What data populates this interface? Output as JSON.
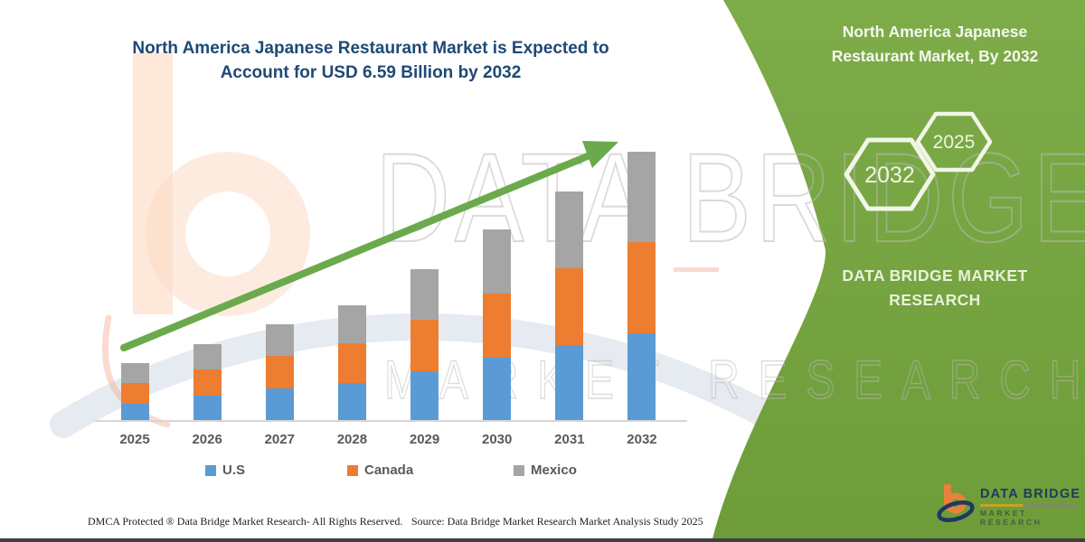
{
  "header": {
    "title_lines": [
      "North America Japanese Restaurant Market is Expected to",
      "Account for USD 6.59 Billion by 2032"
    ]
  },
  "chart_data": {
    "type": "bar",
    "stacked": true,
    "title": "North America Japanese Restaurant Market is Expected to Account for USD 6.59 Billion by 2032",
    "unit": "USD Billion",
    "categories": [
      "2025",
      "2026",
      "2027",
      "2028",
      "2029",
      "2030",
      "2031",
      "2032"
    ],
    "series": [
      {
        "name": "U.S",
        "color": "#5B9BD5",
        "values": [
          0.4,
          0.6,
          0.78,
          0.91,
          1.2,
          1.53,
          1.84,
          2.13
        ]
      },
      {
        "name": "Canada",
        "color": "#ED7D31",
        "values": [
          0.51,
          0.64,
          0.8,
          0.98,
          1.27,
          1.58,
          1.89,
          2.24
        ]
      },
      {
        "name": "Mexico",
        "color": "#A5A5A5",
        "values": [
          0.49,
          0.62,
          0.78,
          0.93,
          1.24,
          1.58,
          1.89,
          2.22
        ]
      }
    ],
    "totals": [
      1.4,
      1.86,
      2.36,
      2.82,
      3.71,
      4.69,
      5.62,
      6.59
    ],
    "ylim": [
      0,
      7
    ],
    "gridlines": false,
    "y_axis_visible": false,
    "legend_position": "bottom",
    "annotations": [
      "upward trend arrow"
    ]
  },
  "side_panel": {
    "title_lines": [
      "North America Japanese",
      "Restaurant Market, By 2032"
    ],
    "hexagons": [
      {
        "label": "2032"
      },
      {
        "label": "2025"
      }
    ],
    "brand_lines": [
      "DATA BRIDGE MARKET",
      "RESEARCH"
    ],
    "logo": {
      "name": "DATA BRIDGE",
      "subtitle": "MARKET RESEARCH"
    }
  },
  "watermark": {
    "line1": "DATA BRIDGE",
    "line2": "MARKET RESEARCH"
  },
  "footer": {
    "dmca": "DMCA Protected ® Data Bridge Market Research-  All Rights Reserved.",
    "source": "Source: Data Bridge Market Research  Market Analysis Study 2025"
  },
  "colors": {
    "green_panel": "#74A03C",
    "arrow": "#6BAA4C",
    "title_text": "#1F4975",
    "axis_text": "#595959",
    "hexagon_stroke": "#F1F6E7"
  }
}
